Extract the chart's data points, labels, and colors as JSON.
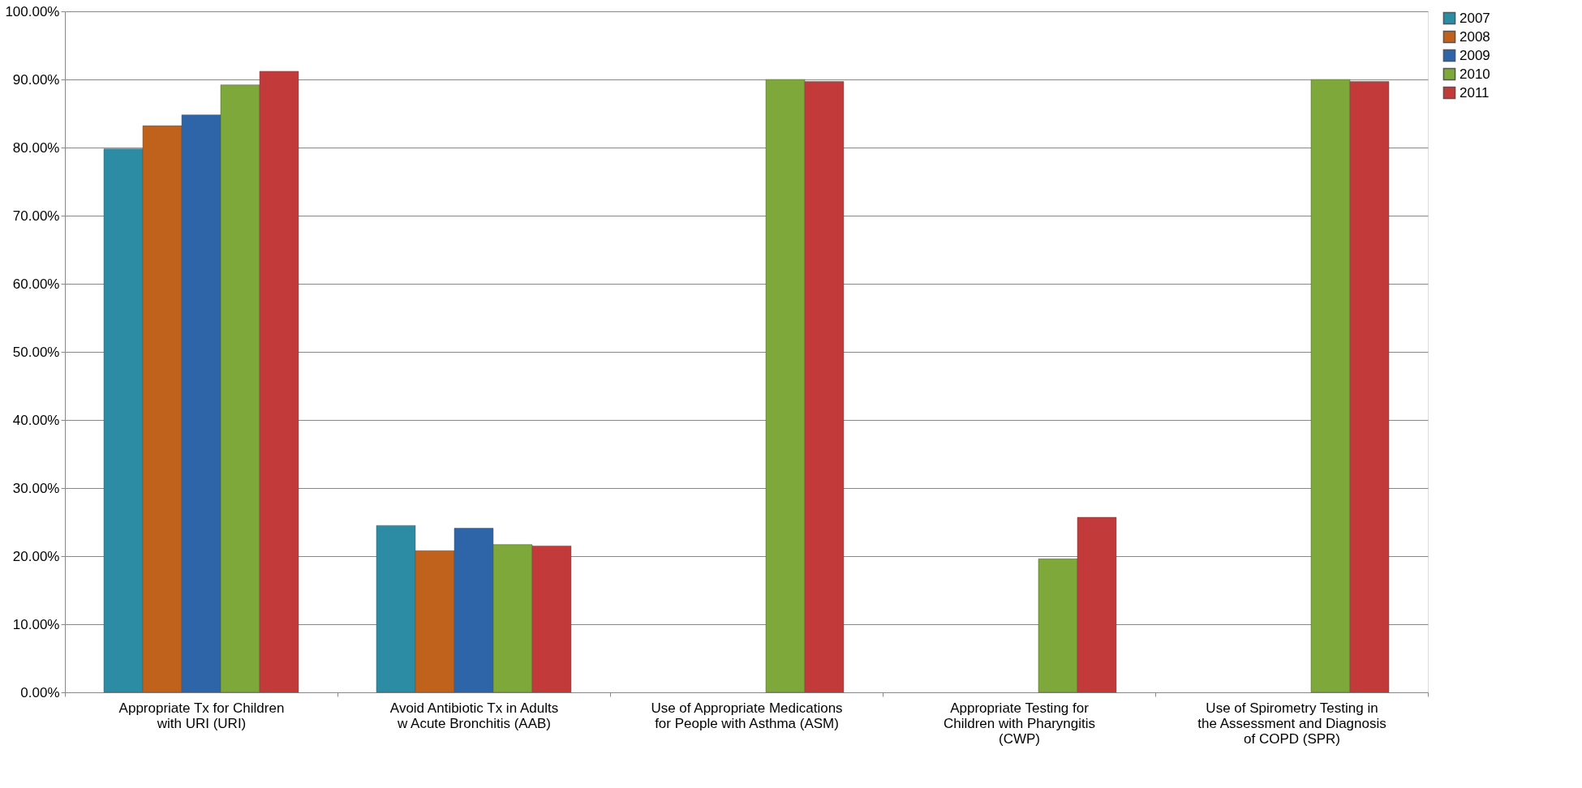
{
  "chart_data": {
    "type": "bar",
    "categories": [
      "Appropriate Tx for Children with URI (URI)",
      "Avoid Antibiotic Tx in Adults w Acute Bronchitis (AAB)",
      "Use of Appropriate Medications for People with Asthma (ASM)",
      "Appropriate Testing for Children with Pharyngitis (CWP)",
      "Use of Spirometry Testing in the Assessment and Diagnosis of COPD (SPR)"
    ],
    "series": [
      {
        "name": "2007",
        "color": "#2b8ca3",
        "values": [
          79.8,
          24.5,
          null,
          null,
          null
        ]
      },
      {
        "name": "2008",
        "color": "#c0621c",
        "values": [
          83.2,
          20.8,
          null,
          null,
          null
        ]
      },
      {
        "name": "2009",
        "color": "#2e64a8",
        "values": [
          84.8,
          24.1,
          null,
          null,
          null
        ]
      },
      {
        "name": "2010",
        "color": "#7ea83a",
        "values": [
          89.2,
          21.7,
          90.0,
          19.6,
          90.0
        ]
      },
      {
        "name": "2011",
        "color": "#c23a3a",
        "values": [
          91.2,
          21.5,
          89.7,
          25.7,
          89.7
        ]
      }
    ],
    "ylim": [
      0,
      100
    ],
    "yticks": [
      {
        "value": 0,
        "label": "0.00%"
      },
      {
        "value": 10,
        "label": "10.00%"
      },
      {
        "value": 20,
        "label": "20.00%"
      },
      {
        "value": 30,
        "label": "30.00%"
      },
      {
        "value": 40,
        "label": "40.00%"
      },
      {
        "value": 50,
        "label": "50.00%"
      },
      {
        "value": 60,
        "label": "60.00%"
      },
      {
        "value": 70,
        "label": "70.00%"
      },
      {
        "value": 80,
        "label": "80.00%"
      },
      {
        "value": 90,
        "label": "90.00%"
      },
      {
        "value": 100,
        "label": "100.00%"
      }
    ],
    "grid": "y",
    "legend": "right"
  }
}
